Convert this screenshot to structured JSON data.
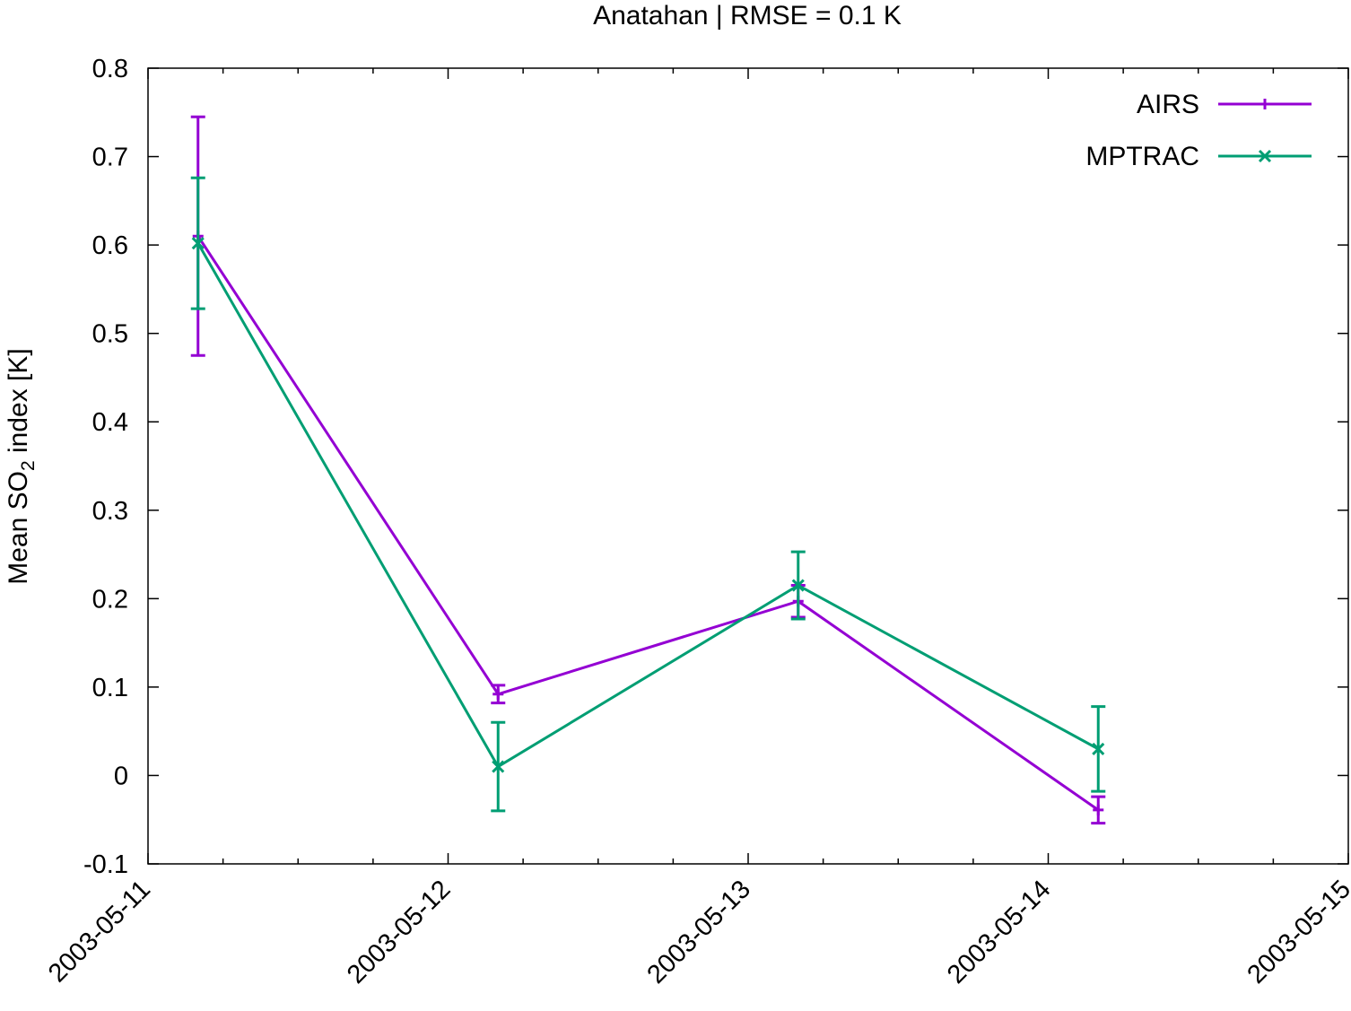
{
  "chart_data": {
    "type": "line",
    "title": "Anatahan | RMSE = 0.1 K",
    "ylabel": "Mean SO",
    "ylabel_sub": "2",
    "ylabel_suffix": " index [K]",
    "xlim": [
      "2003-05-11",
      "2003-05-15"
    ],
    "ylim": [
      -0.1,
      0.8
    ],
    "yticks": [
      -0.1,
      0,
      0.1,
      0.2,
      0.3,
      0.4,
      0.5,
      0.6,
      0.7,
      0.8
    ],
    "ytick_labels": [
      "-0.1",
      "0",
      "0.1",
      "0.2",
      "0.3",
      "0.4",
      "0.5",
      "0.6",
      "0.7",
      "0.8"
    ],
    "xticks": [
      "2003-05-11",
      "2003-05-12",
      "2003-05-13",
      "2003-05-14",
      "2003-05-15"
    ],
    "legend": "top-right",
    "grid": false,
    "series": [
      {
        "name": "AIRS",
        "color": "#9400d3",
        "marker": "plus",
        "x": [
          "2003-05-11 04:00",
          "2003-05-12 04:00",
          "2003-05-13 04:00",
          "2003-05-14 04:00"
        ],
        "y": [
          0.61,
          0.092,
          0.197,
          -0.039
        ],
        "err": [
          0.135,
          0.01,
          0.018,
          0.015
        ]
      },
      {
        "name": "MPTRAC",
        "color": "#009e73",
        "marker": "cross",
        "x": [
          "2003-05-11 04:00",
          "2003-05-12 04:00",
          "2003-05-13 04:00",
          "2003-05-14 04:00"
        ],
        "y": [
          0.602,
          0.01,
          0.215,
          0.03
        ],
        "err": [
          0.074,
          0.05,
          0.038,
          0.048
        ]
      }
    ]
  }
}
